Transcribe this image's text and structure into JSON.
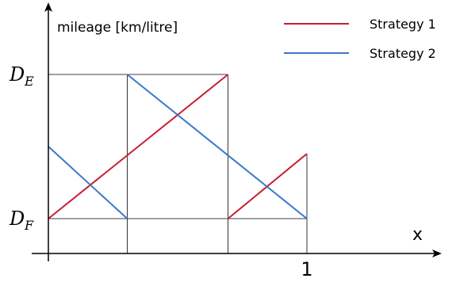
{
  "chart_data": {
    "type": "line",
    "ylabel": "mileage [km/litre]",
    "xlabel": "x",
    "x_ticks": [
      {
        "value": 1,
        "label": "1"
      }
    ],
    "y_ticks": [
      {
        "value": "D_F",
        "base": "D",
        "sub": "F"
      },
      {
        "value": "D_E",
        "base": "D",
        "sub": "E"
      }
    ],
    "grid_lines": {
      "vertical_x": [
        0.305,
        0.695,
        1
      ],
      "horizontal": [
        "D_F",
        "D_E"
      ]
    },
    "series": [
      {
        "name": "Strategy 1",
        "color": "#c81e32",
        "segments": [
          [
            [
              0,
              "D_F"
            ],
            [
              0.695,
              "D_E"
            ]
          ],
          [
            [
              0.695,
              "D_F"
            ],
            [
              1,
              0.45
            ]
          ]
        ]
      },
      {
        "name": "Strategy 2",
        "color": "#3c78c8",
        "segments": [
          [
            [
              0,
              0.5
            ],
            [
              0.305,
              "D_F"
            ]
          ],
          [
            [
              0.305,
              "D_E"
            ],
            [
              1,
              "D_F"
            ]
          ]
        ]
      }
    ],
    "legend": "top-right"
  }
}
